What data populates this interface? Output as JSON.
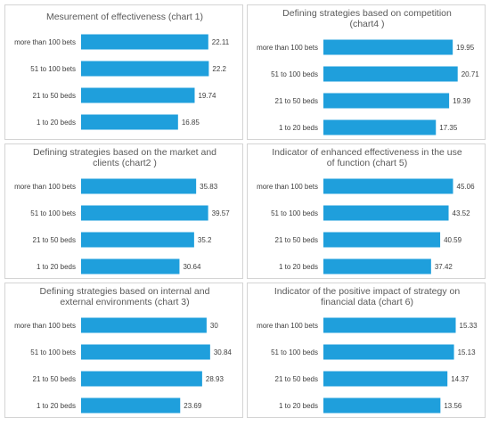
{
  "chart_data": [
    {
      "id": "c1",
      "type": "bar",
      "orientation": "horizontal",
      "title": "Mesurement of effectiveness (chart 1)",
      "categories": [
        "more than 100 bets",
        "51 to 100 bets",
        "21 to 50 beds",
        "1 to 20 beds"
      ],
      "values": [
        22.11,
        22.2,
        19.74,
        16.85
      ],
      "value_labels": [
        "22.11",
        "22.2",
        "19.74",
        "16.85"
      ],
      "xlim": [
        0,
        24
      ],
      "bar_color": "#1f9fdc",
      "grid": false,
      "legend": "none"
    },
    {
      "id": "c4",
      "type": "bar",
      "orientation": "horizontal",
      "title": "Defining strategies based on competition (chart4 )",
      "title_lines": [
        "Defining strategies based on competition",
        "(chart4 )"
      ],
      "categories": [
        "more than 100 bets",
        "51 to 100 beds",
        "21 to 50 beds",
        "1 to 20 beds"
      ],
      "values": [
        19.95,
        20.71,
        19.39,
        17.35
      ],
      "value_labels": [
        "19.95",
        "20.71",
        "19.39",
        "17.35"
      ],
      "xlim": [
        0,
        21.3
      ],
      "bar_color": "#1f9fdc",
      "grid": false,
      "legend": "none"
    },
    {
      "id": "c2",
      "type": "bar",
      "orientation": "horizontal",
      "title": "Defining strategies based on the market and clients (chart2 )",
      "title_lines": [
        "Defining strategies based on the market and",
        "clients (chart2 )"
      ],
      "categories": [
        "more than 100 bets",
        "51 to 100 bets",
        "21 to 50 beds",
        "1 to 20 beds"
      ],
      "values": [
        35.83,
        39.57,
        35.2,
        30.64
      ],
      "value_labels": [
        "35.83",
        "39.57",
        "35.2",
        "30.64"
      ],
      "xlim": [
        0,
        43
      ],
      "bar_color": "#1f9fdc",
      "grid": false,
      "legend": "none"
    },
    {
      "id": "c5",
      "type": "bar",
      "orientation": "horizontal",
      "title": "Indicator of enhanced effectiveness in the use of function (chart 5)",
      "title_lines": [
        "Indicator of enhanced effectiveness in the use",
        "of function (chart 5)"
      ],
      "categories": [
        "more than 100 bets",
        "51 to 100 beds",
        "21 to 50 beds",
        "1 to 20 beds"
      ],
      "values": [
        45.06,
        43.52,
        40.59,
        37.42
      ],
      "value_labels": [
        "45.06",
        "43.52",
        "40.59",
        "37.42"
      ],
      "xlim": [
        0,
        48
      ],
      "bar_color": "#1f9fdc",
      "grid": false,
      "legend": "none"
    },
    {
      "id": "c3",
      "type": "bar",
      "orientation": "horizontal",
      "title": "Defining strategies based on internal and external environments (chart 3)",
      "title_lines": [
        "Defining strategies based on internal and",
        "external environments (chart 3)"
      ],
      "categories": [
        "more than 100 bets",
        "51 to 100 bets",
        "21 to 50 beds",
        "1 to 20 beds"
      ],
      "values": [
        30,
        30.84,
        28.93,
        23.69
      ],
      "value_labels": [
        "30",
        "30.84",
        "28.93",
        "23.69"
      ],
      "xlim": [
        0,
        33
      ],
      "bar_color": "#1f9fdc",
      "grid": false,
      "legend": "none"
    },
    {
      "id": "c6",
      "type": "bar",
      "orientation": "horizontal",
      "title": "Indicator of the positive impact of strategy on financial data (chart 6)",
      "title_lines": [
        "Indicator of the positive impact of strategy on",
        "financial data (chart 6)"
      ],
      "categories": [
        "more than 100 bets",
        "51 to 100 beds",
        "21 to 50 beds",
        "1 to 20 beds"
      ],
      "values": [
        15.33,
        15.13,
        14.37,
        13.56
      ],
      "value_labels": [
        "15.33",
        "15.13",
        "14.37",
        "13.56"
      ],
      "xlim": [
        0,
        16
      ],
      "bar_color": "#1f9fdc",
      "grid": false,
      "legend": "none"
    }
  ]
}
